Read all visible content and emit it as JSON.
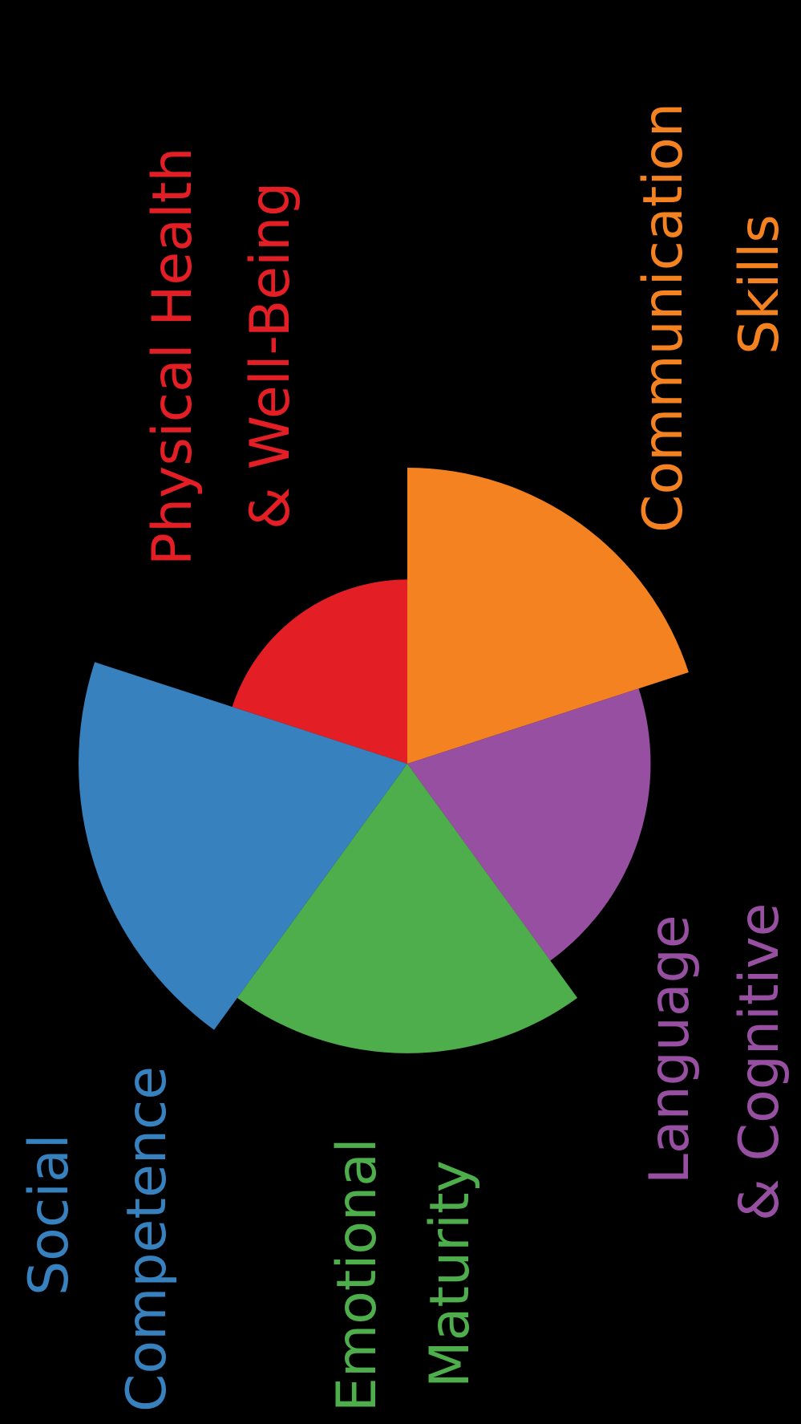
{
  "diagram": {
    "type": "polar-area-wheel",
    "segments": [
      {
        "id": "physical",
        "label_lines": [
          "Physical Health",
          "& Well-Being"
        ],
        "color": "#e31e24",
        "relative_extent": 0.56
      },
      {
        "id": "communication",
        "label_lines": [
          "Communication",
          "Skills"
        ],
        "color": "#f58220",
        "relative_extent": 0.9
      },
      {
        "id": "language",
        "label_lines": [
          "Language",
          "& Cognitive"
        ],
        "color": "#974fa1",
        "relative_extent": 0.74
      },
      {
        "id": "emotional",
        "label_lines": [
          "Emotional",
          "Maturity"
        ],
        "color": "#4eae4b",
        "relative_extent": 0.88
      },
      {
        "id": "social",
        "label_lines": [
          "Social",
          "Competence"
        ],
        "color": "#3781bf",
        "relative_extent": 1.0
      }
    ]
  }
}
